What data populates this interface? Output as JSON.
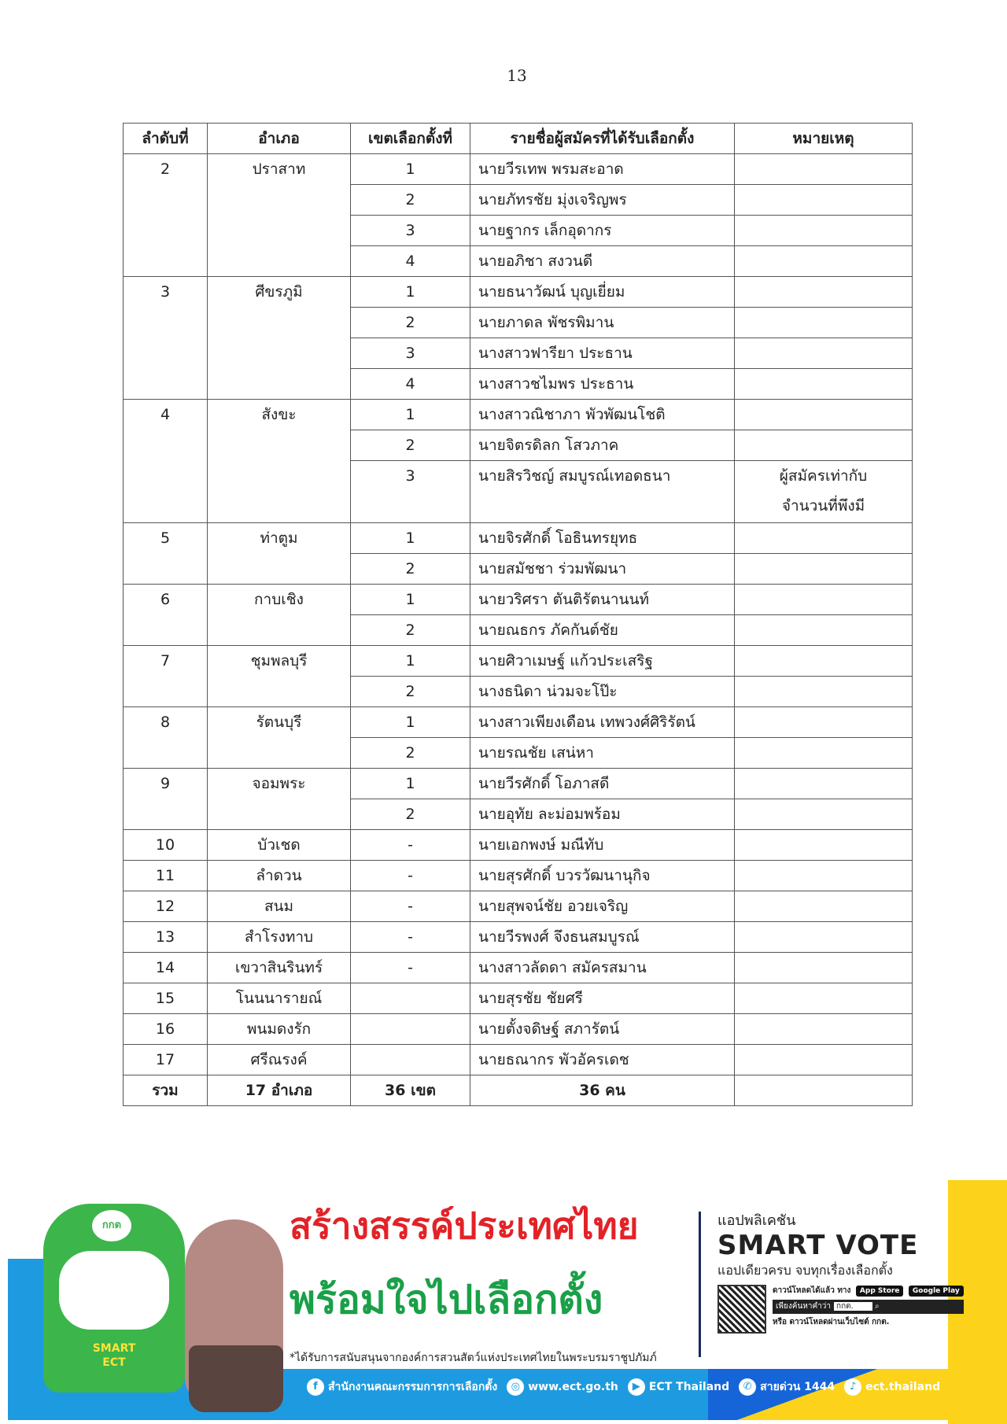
{
  "page_number": "13",
  "table": {
    "headers": [
      "ลำดับที่",
      "อำเภอ",
      "เขตเลือกตั้งที่",
      "รายชื่อผู้สมัครที่ได้รับเลือกตั้ง",
      "หมายเหตุ"
    ],
    "groups": [
      {
        "no": "2",
        "district": "ปราสาท",
        "rows": [
          {
            "zone": "1",
            "name": "นายวีรเทพ พรมสะอาด",
            "remark": ""
          },
          {
            "zone": "2",
            "name": "นายภัทรชัย มุ่งเจริญพร",
            "remark": ""
          },
          {
            "zone": "3",
            "name": "นายฐากร เล็กอุดากร",
            "remark": ""
          },
          {
            "zone": "4",
            "name": "นายอภิชา สงวนดี",
            "remark": ""
          }
        ]
      },
      {
        "no": "3",
        "district": "ศีขรภูมิ",
        "rows": [
          {
            "zone": "1",
            "name": "นายธนาวัฒน์ บุญเยี่ยม",
            "remark": ""
          },
          {
            "zone": "2",
            "name": "นายภาดล พัชรพิมาน",
            "remark": ""
          },
          {
            "zone": "3",
            "name": "นางสาวฟารียา ประธาน",
            "remark": ""
          },
          {
            "zone": "4",
            "name": "นางสาวชไมพร ประธาน",
            "remark": ""
          }
        ]
      },
      {
        "no": "4",
        "district": "สังขะ",
        "rows": [
          {
            "zone": "1",
            "name": "นางสาวณิชาภา พัวพัฒนโชติ",
            "remark": ""
          },
          {
            "zone": "2",
            "name": "นายจิตรดิลก โสวภาค",
            "remark": ""
          },
          {
            "zone": "3",
            "name": "นายสิรวิชญ์ สมบูรณ์เทอดธนา",
            "remark": "ผู้สมัครเท่ากับจำนวนที่พึงมี"
          }
        ]
      },
      {
        "no": "5",
        "district": "ท่าตูม",
        "rows": [
          {
            "zone": "1",
            "name": "นายจิรศักดิ์ โอธินทรยุทธ",
            "remark": ""
          },
          {
            "zone": "2",
            "name": "นายสมัชชา ร่วมพัฒนา",
            "remark": ""
          }
        ]
      },
      {
        "no": "6",
        "district": "กาบเชิง",
        "rows": [
          {
            "zone": "1",
            "name": "นายวริศรา ตันติรัตนานนท์",
            "remark": ""
          },
          {
            "zone": "2",
            "name": "นายณธกร ภัคกันต์ชัย",
            "remark": ""
          }
        ]
      },
      {
        "no": "7",
        "district": "ชุมพลบุรี",
        "rows": [
          {
            "zone": "1",
            "name": "นายศิวาเมษฐ์ แก้วประเสริฐ",
            "remark": ""
          },
          {
            "zone": "2",
            "name": "นางธนิดา น่วมจะโป๊ะ",
            "remark": ""
          }
        ]
      },
      {
        "no": "8",
        "district": "รัตนบุรี",
        "rows": [
          {
            "zone": "1",
            "name": "นางสาวเพียงเดือน เทพวงศ์ศิริรัตน์",
            "remark": ""
          },
          {
            "zone": "2",
            "name": "นายรณชัย เสน่หา",
            "remark": ""
          }
        ]
      },
      {
        "no": "9",
        "district": "จอมพระ",
        "rows": [
          {
            "zone": "1",
            "name": "นายวีรศักดิ์ โอภาสดี",
            "remark": ""
          },
          {
            "zone": "2",
            "name": "นายอุทัย ละม่อมพร้อม",
            "remark": ""
          }
        ]
      },
      {
        "no": "10",
        "district": "บัวเชด",
        "rows": [
          {
            "zone": "-",
            "name": "นายเอกพงษ์ มณีทับ",
            "remark": ""
          }
        ]
      },
      {
        "no": "11",
        "district": "ลำดวน",
        "rows": [
          {
            "zone": "-",
            "name": "นายสุรศักดิ์ บวรวัฒนานุกิจ",
            "remark": ""
          }
        ]
      },
      {
        "no": "12",
        "district": "สนม",
        "rows": [
          {
            "zone": "-",
            "name": "นายสุพจน์ชัย อวยเจริญ",
            "remark": ""
          }
        ]
      },
      {
        "no": "13",
        "district": "สำโรงทาบ",
        "rows": [
          {
            "zone": "-",
            "name": "นายวีรพงศ์ จึงธนสมบูรณ์",
            "remark": ""
          }
        ]
      },
      {
        "no": "14",
        "district": "เขวาสินรินทร์",
        "rows": [
          {
            "zone": "-",
            "name": "นางสาวลัดดา สมัครสมาน",
            "remark": ""
          }
        ]
      },
      {
        "no": "15",
        "district": "โนนนารายณ์",
        "rows": [
          {
            "zone": "",
            "name": "นายสุรชัย ชัยศรี",
            "remark": ""
          }
        ]
      },
      {
        "no": "16",
        "district": "พนมดงรัก",
        "rows": [
          {
            "zone": "",
            "name": "นายตั้งจดิษฐ์ สภารัตน์",
            "remark": ""
          }
        ]
      },
      {
        "no": "17",
        "district": "ศรีณรงค์",
        "rows": [
          {
            "zone": "",
            "name": "นายธณากร พัวอัครเดช",
            "remark": ""
          }
        ]
      }
    ],
    "total": {
      "label": "รวม",
      "districts": "17 อำเภอ",
      "zones": "36 เขต",
      "persons": "36 คน",
      "remark": ""
    }
  },
  "banner": {
    "slogan_line1": "สร้างสรรค์ประเทศไทย",
    "slogan_line2": "พร้อมใจไปเลือกตั้ง",
    "note": "*ได้รับการสนับสนุนจากองค์การสวนสัตว์แห่งประเทศไทยในพระบรมราชูปภัมภ์",
    "app_label": "แอปพลิเคชัน",
    "app_name": "SMART VOTE",
    "app_tagline": "แอปเดียวครบ จบทุกเรื่องเลือกตั้ง",
    "download_text": "ดาวน์โหลดได้แล้ว ทาง",
    "app_store": "App Store",
    "google_play": "Google Play",
    "search_label": "เพียงค้นหาคำว่า",
    "search_value": "กกต.",
    "web_download": "หรือ ดาวน์โหลดผ่านเว็บไซต์ กกต.",
    "mascot_badge": "กกต",
    "mascot_shirt": "SMART ECT",
    "footer": [
      {
        "icon": "facebook-icon",
        "glyph": "f",
        "text": "สำนักงานคณะกรรมการการเลือกตั้ง"
      },
      {
        "icon": "globe-icon",
        "glyph": "◎",
        "text": "www.ect.go.th"
      },
      {
        "icon": "youtube-icon",
        "glyph": "▶",
        "text": "ECT Thailand"
      },
      {
        "icon": "phone-icon",
        "glyph": "✆",
        "text": "สายด่วน 1444"
      },
      {
        "icon": "tiktok-icon",
        "glyph": "♪",
        "text": "ect.thailand"
      }
    ],
    "colors": {
      "red": "#e32227",
      "green": "#1aa048",
      "blue": "#1e9be0",
      "yellow": "#fcd31a"
    }
  }
}
